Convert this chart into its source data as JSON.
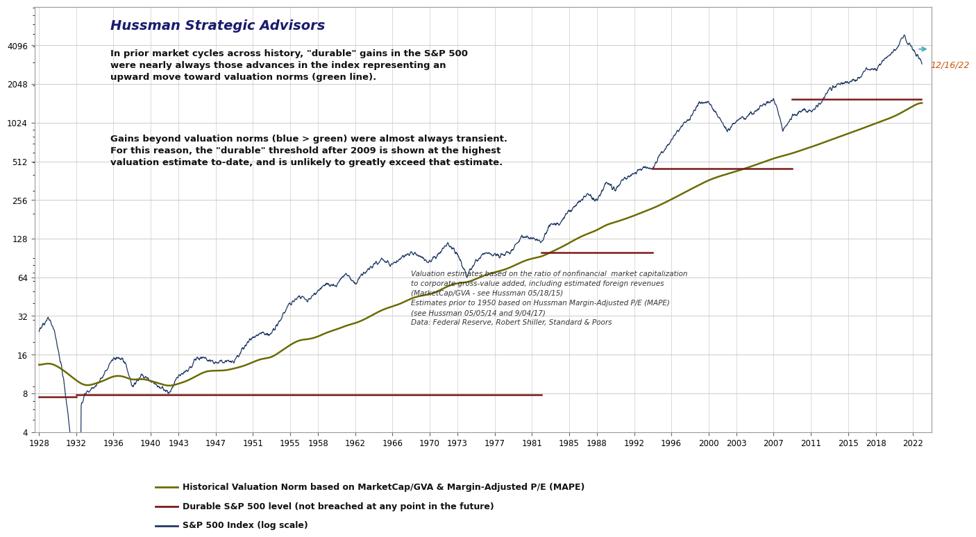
{
  "title": "Hussman Strategic Advisors",
  "annotation_text1": "In prior market cycles across history, \"durable\" gains in the S&P 500\nwere nearly always those advances in the index representing an\nupward move toward valuation norms (green line).",
  "annotation_text2": "Gains beyond valuation norms (blue > green) were almost always transient.\nFor this reason, the \"durable\" threshold after 2009 is shown at the highest\nvaluation estimate to-date, and is unlikely to greatly exceed that estimate.",
  "footnote": "Valuation estimates based on the ratio of nonfinancial  market capitalization\nto corporate gross-value added, including estimated foreign revenues\n(MarketCap/GVA - see Hussman 05/18/15)\nEstimates prior to 1950 based on Hussman Margin-Adjusted P/E (MAPE)\n(see Hussman 05/05/14 and 9/04/17)\nData: Federal Reserve, Robert Shiller, Standard & Poors",
  "legend1": "Historical Valuation Norm based on MarketCap/GVA & Margin-Adjusted P/E (MAPE)",
  "legend2": "Durable S&P 500 level (not breached at any point in the future)",
  "legend3": "S&P 500 Index (log scale)",
  "date_label": "12/16/22",
  "color_sp500": "#1F3864",
  "color_valuation": "#6B6B00",
  "color_durable": "#7B1A1A",
  "color_arrow": "#4BACC6",
  "ylim_min": 4,
  "ylim_max": 8192,
  "xlabel_color": "#333333",
  "bg_color": "#FFFFFF",
  "grid_color": "#CCCCCC"
}
